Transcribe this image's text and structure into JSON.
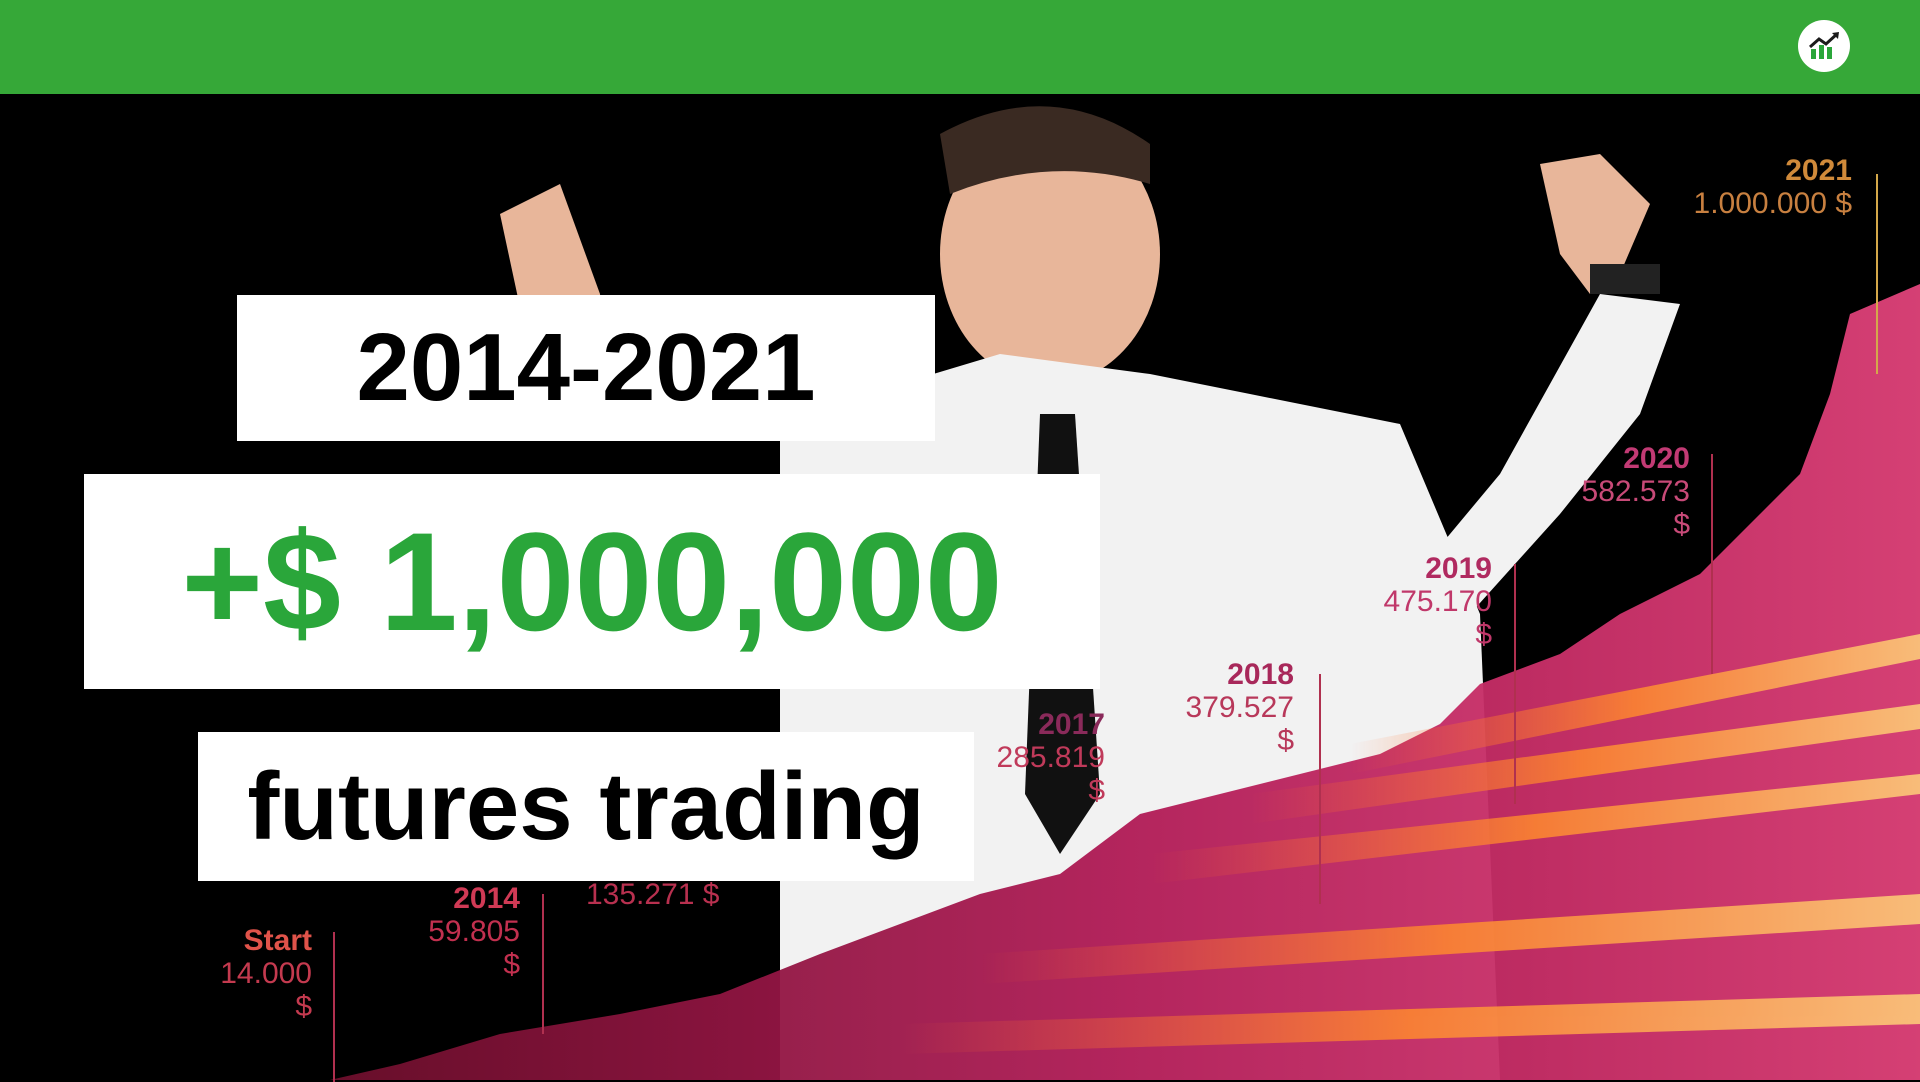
{
  "header": {
    "logo_icon": "trending-up-chart-icon",
    "brand_color": "#36a838"
  },
  "headline": {
    "years": "2014-2021",
    "amount": "+$ 1,000,000",
    "subtitle": "futures trading"
  },
  "milestones": [
    {
      "year": "Start",
      "value": "14.000 $"
    },
    {
      "year": "2014",
      "value": "59.805 $"
    },
    {
      "year": "",
      "value": "135.271 $"
    },
    {
      "year": "2017",
      "value": "285.819 $"
    },
    {
      "year": "2018",
      "value": "379.527 $"
    },
    {
      "year": "2019",
      "value": "475.170 $"
    },
    {
      "year": "2020",
      "value": "582.573 $"
    },
    {
      "year": "2021",
      "value": "1.000.000 $"
    }
  ],
  "colors": {
    "amount_text": "#2aa63a",
    "chart_magenta": "#c2185b",
    "chart_orange": "#f28a2e"
  }
}
